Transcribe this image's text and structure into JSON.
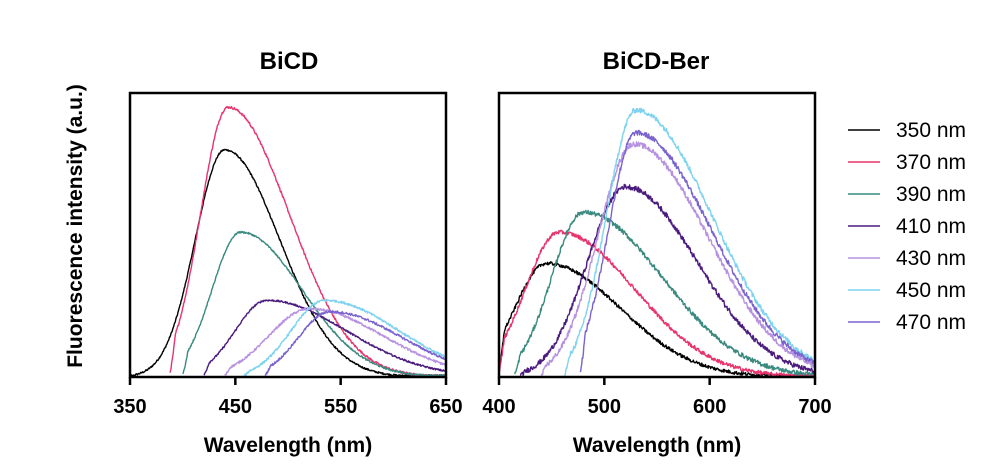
{
  "figure": {
    "ylabel": "Fluorescence intensity (a.u.)",
    "legend_title_hint": "",
    "legend": [
      {
        "label": "350 nm",
        "color": "#000000"
      },
      {
        "label": "370 nm",
        "color": "#e8336c"
      },
      {
        "label": "390 nm",
        "color": "#3a8a80"
      },
      {
        "label": "410 nm",
        "color": "#4b1a7e"
      },
      {
        "label": "430 nm",
        "color": "#b792e0"
      },
      {
        "label": "450 nm",
        "color": "#7fd3ef"
      },
      {
        "label": "470 nm",
        "color": "#7a63cf"
      }
    ]
  },
  "chart_data": [
    {
      "type": "line",
      "title": "BiCD",
      "xlabel": "Wavelength (nm)",
      "ylabel": "Fluorescence intensity (a.u.)",
      "xlim": [
        350,
        650
      ],
      "ylim": [
        0,
        1.0
      ],
      "xticks": [
        350,
        450,
        550,
        650
      ],
      "yticks_shown": false,
      "series": [
        {
          "name": "350 nm",
          "color": "#000000",
          "peak_x": 440,
          "peak_y": 0.8,
          "start_x": 350,
          "width_left": 28,
          "width_right": 52,
          "noise": 0.003
        },
        {
          "name": "370 nm",
          "color": "#e8336c",
          "peak_x": 443,
          "peak_y": 0.95,
          "start_x": 388,
          "width_left": 26,
          "width_right": 58,
          "noise": 0.004
        },
        {
          "name": "390 nm",
          "color": "#3a8a80",
          "peak_x": 455,
          "peak_y": 0.51,
          "start_x": 400,
          "width_left": 27,
          "width_right": 58,
          "noise": 0.003
        },
        {
          "name": "410 nm",
          "color": "#4b1a7e",
          "peak_x": 480,
          "peak_y": 0.27,
          "start_x": 420,
          "width_left": 30,
          "width_right": 75,
          "noise": 0.003
        },
        {
          "name": "430 nm",
          "color": "#b792e0",
          "peak_x": 520,
          "peak_y": 0.24,
          "start_x": 440,
          "width_left": 38,
          "width_right": 70,
          "noise": 0.004
        },
        {
          "name": "450 nm",
          "color": "#7fd3ef",
          "peak_x": 535,
          "peak_y": 0.27,
          "start_x": 458,
          "width_left": 32,
          "width_right": 70,
          "noise": 0.004
        },
        {
          "name": "470 nm",
          "color": "#7a63cf",
          "peak_x": 540,
          "peak_y": 0.23,
          "start_x": 478,
          "width_left": 30,
          "width_right": 68,
          "noise": 0.004
        }
      ]
    },
    {
      "type": "line",
      "title": "BiCD-Ber",
      "xlabel": "Wavelength (nm)",
      "ylabel": "",
      "xlim": [
        400,
        700
      ],
      "ylim": [
        0,
        1.0
      ],
      "xticks": [
        400,
        500,
        600,
        700
      ],
      "yticks_shown": false,
      "series": [
        {
          "name": "350 nm",
          "color": "#000000",
          "peak_x": 445,
          "peak_y": 0.4,
          "start_x": 400,
          "width_left": 30,
          "width_right": 70,
          "noise": 0.006
        },
        {
          "name": "370 nm",
          "color": "#e8336c",
          "peak_x": 457,
          "peak_y": 0.51,
          "start_x": 400,
          "width_left": 32,
          "width_right": 72,
          "noise": 0.007
        },
        {
          "name": "390 nm",
          "color": "#3a8a80",
          "peak_x": 480,
          "peak_y": 0.58,
          "start_x": 415,
          "width_left": 30,
          "width_right": 75,
          "noise": 0.008
        },
        {
          "name": "410 nm",
          "color": "#4b1a7e",
          "peak_x": 520,
          "peak_y": 0.67,
          "start_x": 420,
          "width_left": 36,
          "width_right": 68,
          "noise": 0.009
        },
        {
          "name": "430 nm",
          "color": "#b792e0",
          "peak_x": 528,
          "peak_y": 0.82,
          "start_x": 440,
          "width_left": 34,
          "width_right": 70,
          "noise": 0.009
        },
        {
          "name": "450 nm",
          "color": "#7fd3ef",
          "peak_x": 530,
          "peak_y": 0.94,
          "start_x": 462,
          "width_left": 28,
          "width_right": 72,
          "noise": 0.009
        },
        {
          "name": "470 nm",
          "color": "#7a63cf",
          "peak_x": 530,
          "peak_y": 0.86,
          "start_x": 477,
          "width_left": 26,
          "width_right": 71,
          "noise": 0.009
        }
      ]
    }
  ]
}
